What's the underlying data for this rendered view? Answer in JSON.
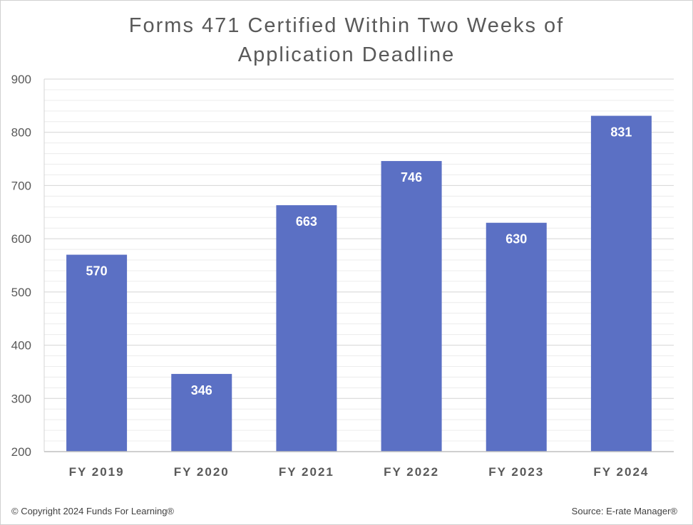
{
  "chart_data": {
    "type": "bar",
    "title_lines": [
      "Forms 471 Certified Within Two Weeks of",
      "Application Deadline"
    ],
    "categories": [
      "FY 2019",
      "FY 2020",
      "FY 2021",
      "FY 2022",
      "FY 2023",
      "FY 2024"
    ],
    "values": [
      570,
      346,
      663,
      746,
      630,
      831
    ],
    "data_labels": [
      "570",
      "346",
      "663",
      "746",
      "630",
      "831"
    ],
    "ylim": [
      200,
      900
    ],
    "y_ticks": [
      "200",
      "300",
      "400",
      "500",
      "600",
      "700",
      "800",
      "900"
    ],
    "y_tick_values": [
      200,
      300,
      400,
      500,
      600,
      700,
      800,
      900
    ],
    "major_step": 100,
    "minor_step": 20,
    "grid": true,
    "xlabel": "",
    "ylabel": "",
    "bar_color": "#5b70c4"
  },
  "footer": {
    "copyright": "© Copyright 2024 Funds For Learning®",
    "source": "Source: E-rate Manager®"
  }
}
